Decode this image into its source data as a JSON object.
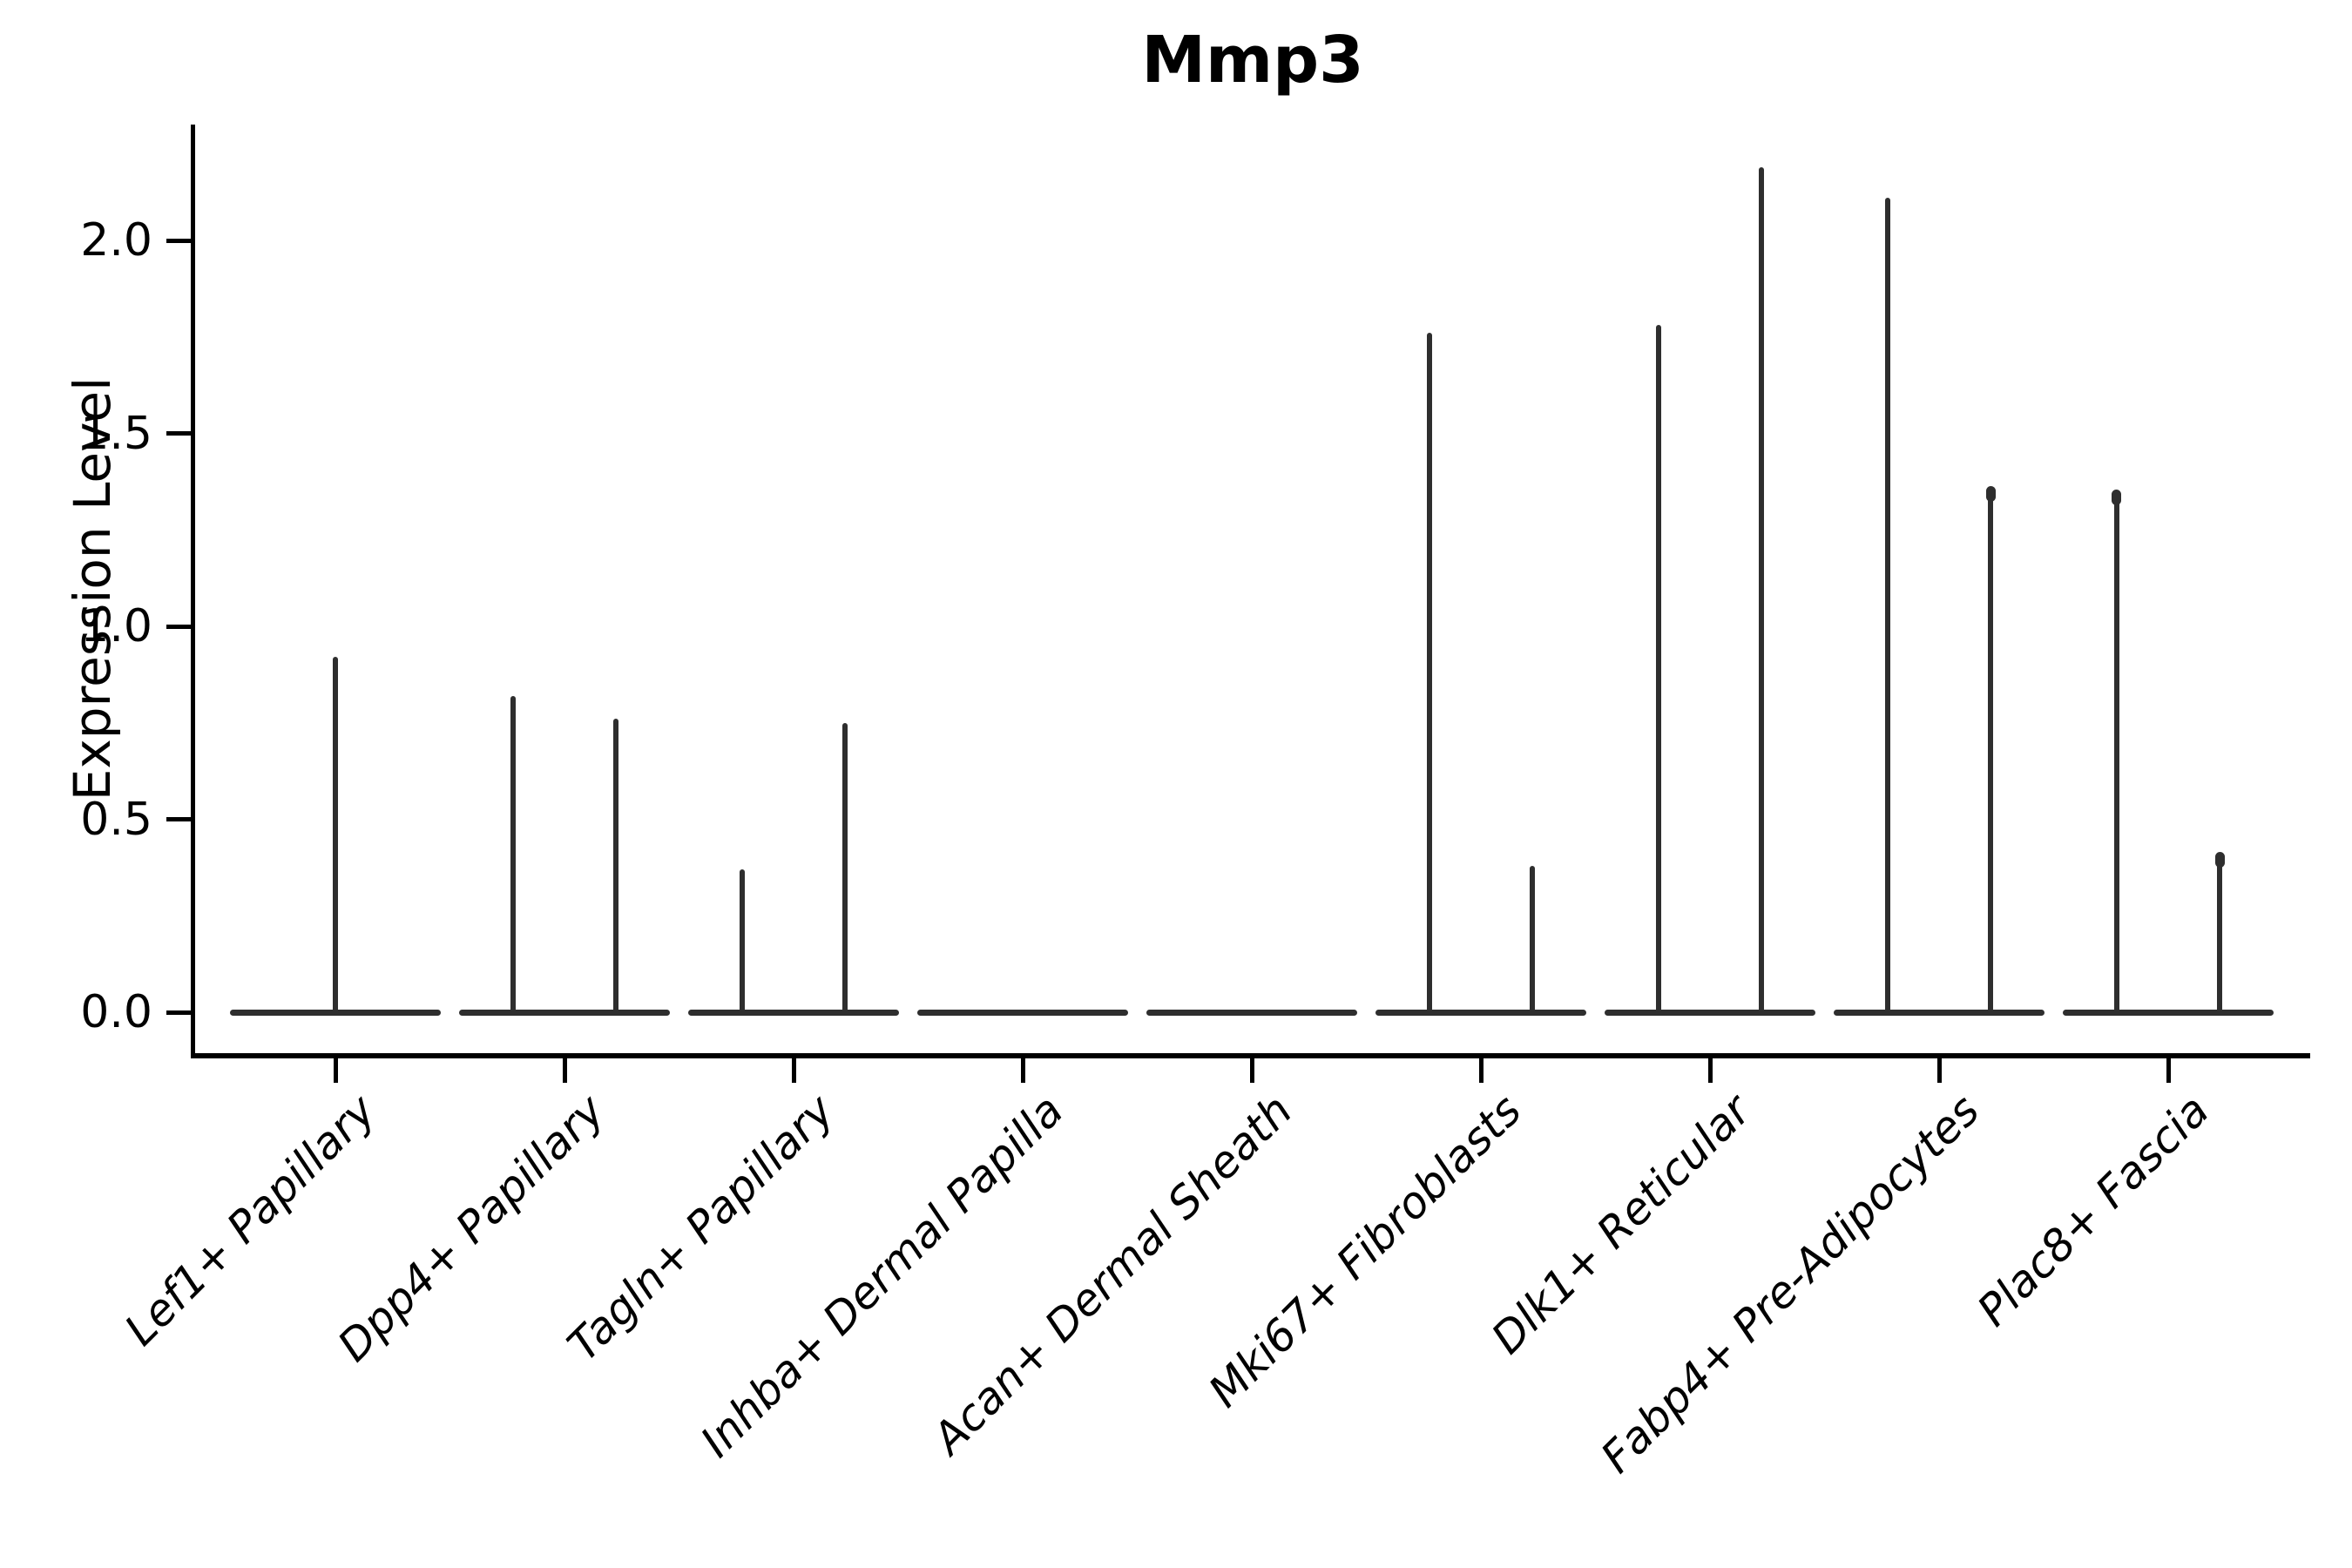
{
  "title": {
    "text": "Mmp3"
  },
  "y_axis": {
    "label": "Expression Level",
    "tick_labels": [
      "0.0",
      "0.5",
      "1.0",
      "1.5",
      "2.0"
    ],
    "tick_values": [
      0.0,
      0.5,
      1.0,
      1.5,
      2.0
    ],
    "range": [
      -0.106,
      2.304
    ]
  },
  "x_axis": {
    "categories": [
      "Lef1+ Papillary",
      "Dpp4+ Papillary",
      "Tagln+ Papillary",
      "Inhba+ Dermal Papilla",
      "Acan+ Dermal Sheath",
      "Mki67+ Fibroblasts",
      "Dlk1+ Reticular",
      "Fabp4+ Pre-Adipocytes",
      "Plac8+ Fascia"
    ],
    "tick_rotation_deg": 45
  },
  "chart_data": {
    "type": "violin",
    "title": "Mmp3",
    "xlabel": "",
    "ylabel": "Expression Level",
    "ylim": [
      -0.106,
      2.304
    ],
    "yticks": [
      0.0,
      0.5,
      1.0,
      1.5,
      2.0
    ],
    "grid": "off",
    "legend": "none",
    "line_color": "#2e2e2e",
    "axis_color": "#000000",
    "categories": [
      "Lef1+ Papillary",
      "Dpp4+ Papillary",
      "Tagln+ Papillary",
      "Inhba+ Dermal Papilla",
      "Acan+ Dermal Sheath",
      "Mki67+ Fibroblasts",
      "Dlk1+ Reticular",
      "Fabp4+ Pre-Adipocytes",
      "Plac8+ Fascia"
    ],
    "groups": [
      {
        "category": "Lef1+ Papillary",
        "baseline_width": 0.92,
        "violins": [
          {
            "offset": 0,
            "max_expression": 0.92,
            "tip_knob": false
          }
        ]
      },
      {
        "category": "Dpp4+ Papillary",
        "baseline_width": 0.92,
        "violins": [
          {
            "offset": -0.225,
            "max_expression": 0.82,
            "tip_knob": false
          },
          {
            "offset": 0.225,
            "max_expression": 0.76,
            "tip_knob": false
          }
        ]
      },
      {
        "category": "Tagln+ Papillary",
        "baseline_width": 0.92,
        "violins": [
          {
            "offset": -0.225,
            "max_expression": 0.37,
            "tip_knob": false
          },
          {
            "offset": 0.225,
            "max_expression": 0.75,
            "tip_knob": false
          }
        ]
      },
      {
        "category": "Inhba+ Dermal Papilla",
        "baseline_width": 0.92,
        "violins": []
      },
      {
        "category": "Acan+ Dermal Sheath",
        "baseline_width": 0.92,
        "violins": []
      },
      {
        "category": "Mki67+ Fibroblasts",
        "baseline_width": 0.92,
        "violins": [
          {
            "offset": -0.225,
            "max_expression": 1.76,
            "tip_knob": false
          },
          {
            "offset": 0.225,
            "max_expression": 0.38,
            "tip_knob": false
          }
        ]
      },
      {
        "category": "Dlk1+ Reticular",
        "baseline_width": 0.92,
        "violins": [
          {
            "offset": -0.225,
            "max_expression": 1.78,
            "tip_knob": false
          },
          {
            "offset": 0.225,
            "max_expression": 2.19,
            "tip_knob": false
          }
        ]
      },
      {
        "category": "Fabp4+ Pre-Adipocytes",
        "baseline_width": 0.92,
        "violins": [
          {
            "offset": -0.225,
            "max_expression": 2.11,
            "tip_knob": false
          },
          {
            "offset": 0.225,
            "max_expression": 1.36,
            "tip_knob": true
          }
        ]
      },
      {
        "category": "Plac8+ Fascia",
        "baseline_width": 0.92,
        "violins": [
          {
            "offset": -0.225,
            "max_expression": 1.35,
            "tip_knob": true
          },
          {
            "offset": 0.225,
            "max_expression": 0.41,
            "tip_knob": true
          }
        ]
      }
    ]
  }
}
